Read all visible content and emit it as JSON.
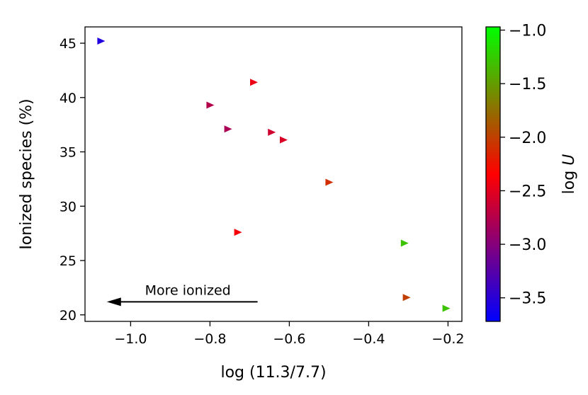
{
  "chart_data": {
    "type": "scatter",
    "xlabel": "log (11.3/7.7)",
    "ylabel": "Ionized species (%)",
    "xlim": [
      -1.115,
      -0.165
    ],
    "ylim": [
      19.4,
      46.5
    ],
    "xticks": [
      -1.0,
      -0.8,
      -0.6,
      -0.4,
      -0.2
    ],
    "xtick_labels": [
      "−1.0",
      "−0.8",
      "−0.6",
      "−0.4",
      "−0.2"
    ],
    "yticks": [
      20,
      25,
      30,
      35,
      40,
      45
    ],
    "ytick_labels": [
      "20",
      "25",
      "30",
      "35",
      "40",
      "45"
    ],
    "grid": false,
    "marker": "triangle-right",
    "colorbar": {
      "label_prefix": "log",
      "label_var": "U",
      "range": [
        -3.72,
        -0.97
      ],
      "ticks": [
        -1.0,
        -1.5,
        -2.0,
        -2.5,
        -3.0,
        -3.5
      ],
      "tick_labels": [
        "−1.0",
        "−1.5",
        "−2.0",
        "−2.5",
        "−3.0",
        "−3.5"
      ],
      "colormap": [
        "#0000ff",
        "#ff0000",
        "#00ff00"
      ]
    },
    "points": [
      {
        "x": -1.075,
        "y": 45.2,
        "c": -3.55
      },
      {
        "x": -0.69,
        "y": 41.4,
        "c": -2.45
      },
      {
        "x": -0.8,
        "y": 39.3,
        "c": -2.75
      },
      {
        "x": -0.755,
        "y": 37.1,
        "c": -2.8
      },
      {
        "x": -0.645,
        "y": 36.8,
        "c": -2.6
      },
      {
        "x": -0.615,
        "y": 36.1,
        "c": -2.55
      },
      {
        "x": -0.5,
        "y": 32.2,
        "c": -2.1
      },
      {
        "x": -0.73,
        "y": 27.6,
        "c": -2.4
      },
      {
        "x": -0.31,
        "y": 26.6,
        "c": -1.3
      },
      {
        "x": -0.305,
        "y": 21.6,
        "c": -2.0
      },
      {
        "x": -0.205,
        "y": 20.6,
        "c": -1.3
      }
    ],
    "annotations": [
      {
        "text": "More ionized",
        "arrow_from": [
          -0.68,
          21.2
        ],
        "arrow_to": [
          -1.06,
          21.2
        ]
      }
    ]
  }
}
